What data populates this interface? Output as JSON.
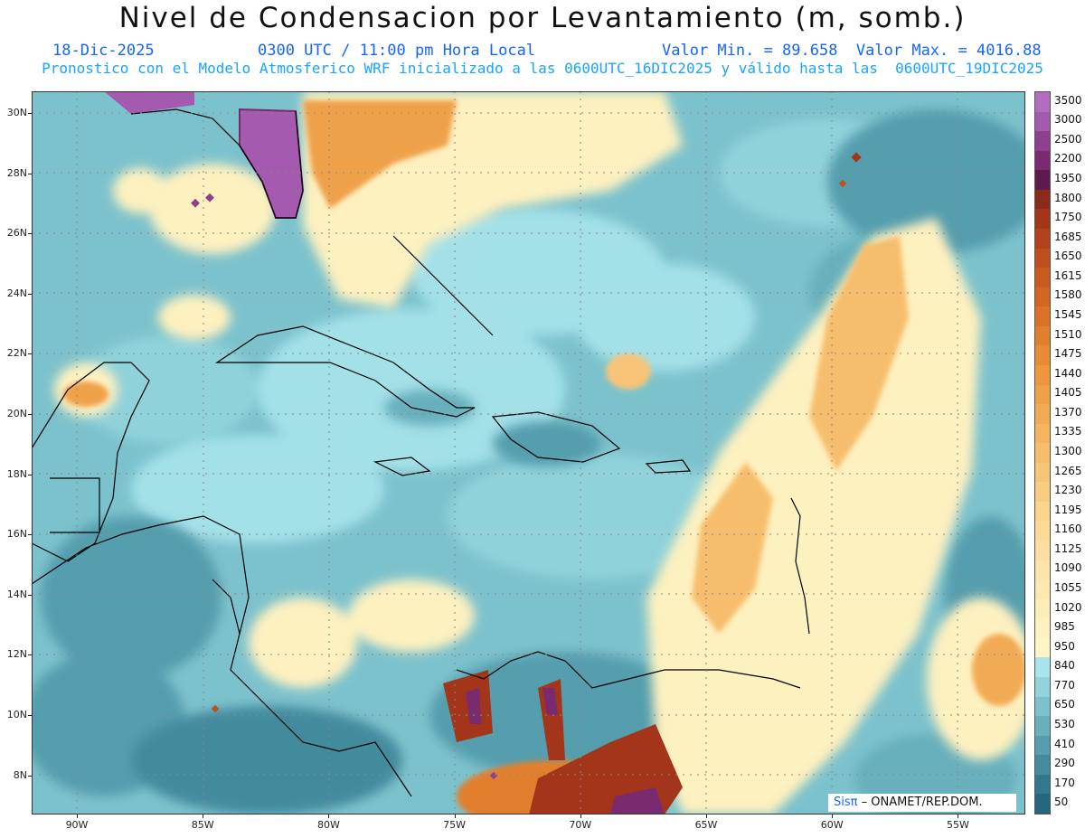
{
  "header": {
    "title": "Nivel de Condensacion por Levantamiento (m, somb.)",
    "date": "18-Dic-2025",
    "time": "0300 UTC / 11:00 pm Hora Local",
    "minmax": "Valor Min. = 89.658  Valor Max. = 4016.88",
    "subtitle": "Pronostico con el Modelo Atmosferico WRF inicializado a las 0600UTC_16DIC2025 y válido hasta las  0600UTC_19DIC2025"
  },
  "axes": {
    "lat_labels": [
      "30N",
      "28N",
      "26N",
      "24N",
      "22N",
      "20N",
      "18N",
      "16N",
      "14N",
      "12N",
      "10N",
      "8N"
    ],
    "lon_labels": [
      "90W",
      "85W",
      "80W",
      "75W",
      "70W",
      "65W",
      "60W",
      "55W"
    ]
  },
  "legend": {
    "levels": [
      "3500",
      "3000",
      "2500",
      "2200",
      "1950",
      "1800",
      "1750",
      "1685",
      "1650",
      "1615",
      "1580",
      "1545",
      "1510",
      "1475",
      "1440",
      "1405",
      "1370",
      "1335",
      "1300",
      "1265",
      "1230",
      "1195",
      "1160",
      "1125",
      "1090",
      "1055",
      "1020",
      "985",
      "950",
      "840",
      "770",
      "650",
      "530",
      "410",
      "290",
      "170",
      "50"
    ],
    "colors": [
      "#b36cbf",
      "#a45aae",
      "#8e3f8e",
      "#7a2a6e",
      "#5e1a4e",
      "#8a2a1a",
      "#a3361a",
      "#b2421c",
      "#c04e1e",
      "#cb5a20",
      "#d46624",
      "#dc7228",
      "#e27f2e",
      "#e88b36",
      "#ec963e",
      "#efa148",
      "#f2ab54",
      "#f4b460",
      "#f6bd6c",
      "#f8c578",
      "#f9cc82",
      "#fad38c",
      "#fbd996",
      "#fcdfa0",
      "#fde4a8",
      "#fde9b0",
      "#feedb8",
      "#fef1c0",
      "#fff4c4",
      "#a8e4ec",
      "#92d4dc",
      "#7cc2cc",
      "#68b0bc",
      "#549ead",
      "#438b9d",
      "#33798e",
      "#24667e"
    ]
  },
  "credit": {
    "brand": "Sisπ",
    "text": "–  ONAMET/REP.DOM."
  }
}
